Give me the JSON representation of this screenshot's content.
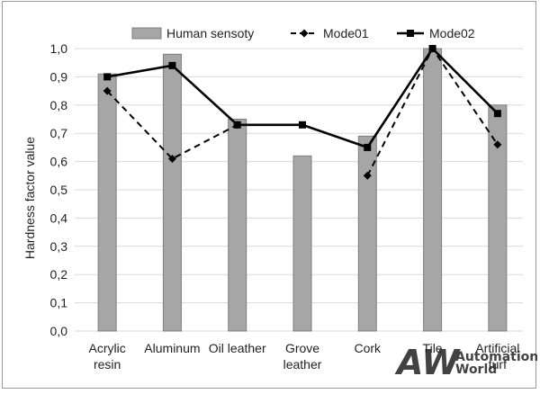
{
  "chart_data": {
    "type": "bar",
    "categories": [
      [
        "Acrylic",
        "resin"
      ],
      [
        "Aluminum"
      ],
      [
        "Oil leather"
      ],
      [
        "Grove",
        "leather"
      ],
      [
        "Cork"
      ],
      [
        "Tile"
      ],
      [
        "Artificial",
        "turf"
      ]
    ],
    "ylabel": "Hardness factor value",
    "xlabel": "",
    "ylim": [
      0,
      1.0
    ],
    "yticks": [
      "0,0",
      "0,1",
      "0,2",
      "0,3",
      "0,4",
      "0,5",
      "0,6",
      "0,7",
      "0,8",
      "0,9",
      "1,0"
    ],
    "grid": true,
    "legend_position": "top",
    "series": [
      {
        "name": "Human sensoty",
        "kind": "bar",
        "color": "#a6a6a6",
        "values": [
          0.91,
          0.98,
          0.75,
          0.62,
          0.69,
          1.0,
          0.8
        ]
      },
      {
        "name": "Mode01",
        "kind": "line",
        "style": "dashed",
        "marker": "diamond",
        "color": "#000000",
        "values": [
          0.85,
          0.61,
          0.73,
          null,
          0.55,
          1.0,
          0.66
        ]
      },
      {
        "name": "Mode02",
        "kind": "line",
        "style": "solid",
        "marker": "square",
        "color": "#000000",
        "values": [
          0.9,
          0.94,
          0.73,
          0.73,
          0.65,
          1.0,
          0.77
        ]
      }
    ]
  },
  "watermark": {
    "logo": "AW",
    "line1": "Automation",
    "line2": "World"
  }
}
